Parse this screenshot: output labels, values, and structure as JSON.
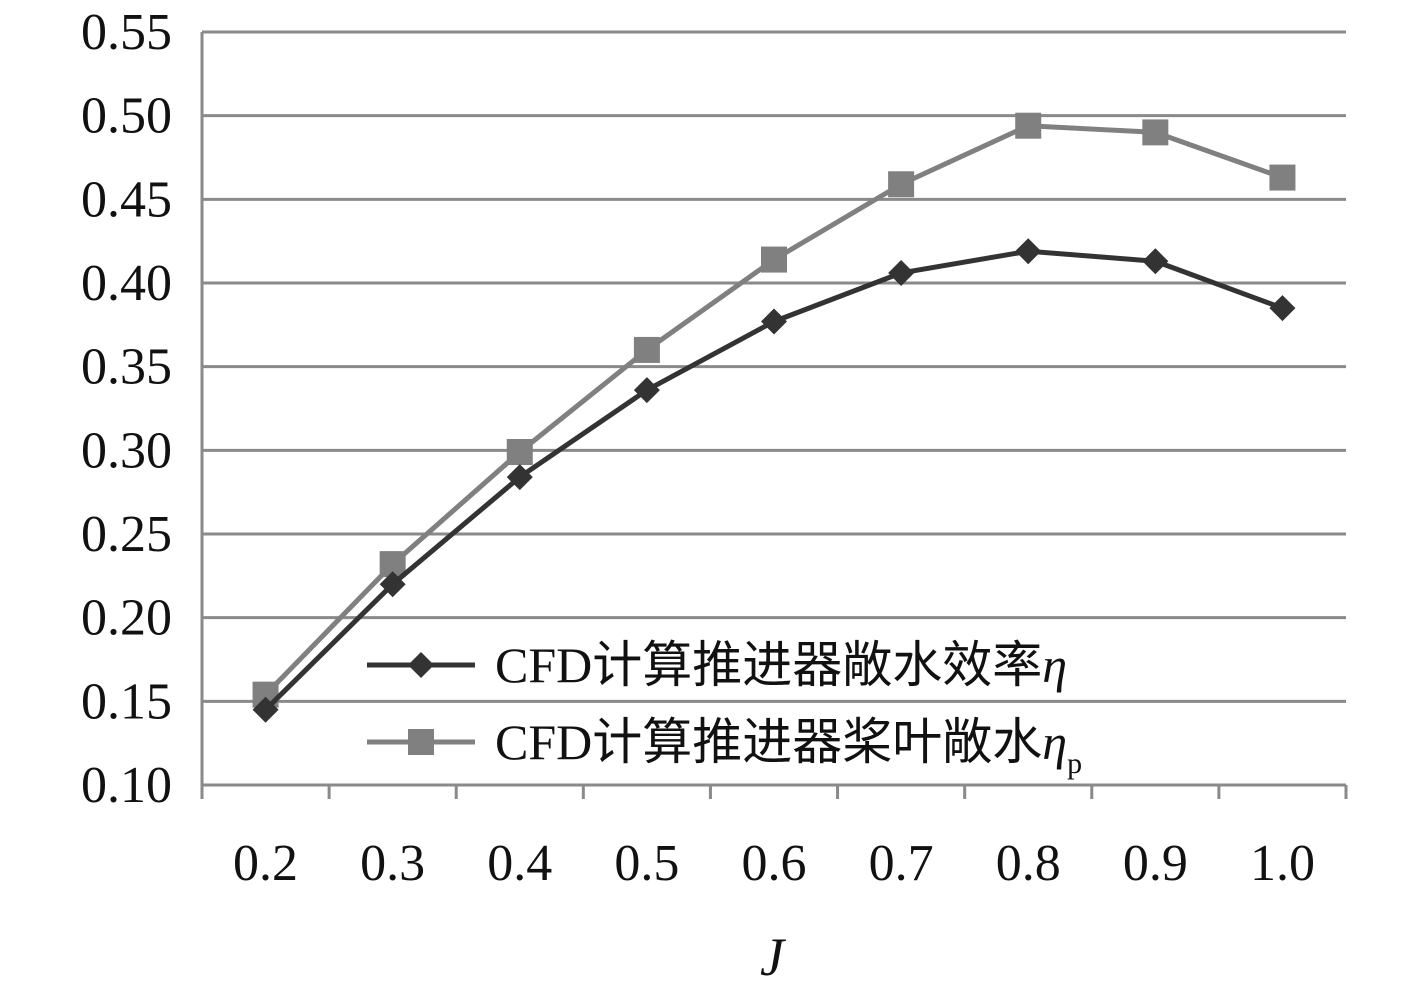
{
  "chart_data": {
    "type": "line",
    "xlabel": "J",
    "ylabel": "",
    "title": "",
    "x": [
      0.2,
      0.3,
      0.4,
      0.5,
      0.6,
      0.7,
      0.8,
      0.9,
      1.0
    ],
    "x_tick_labels": [
      "0.2",
      "0.3",
      "0.4",
      "0.5",
      "0.6",
      "0.7",
      "0.8",
      "0.9",
      "1.0"
    ],
    "ylim": [
      0.1,
      0.55
    ],
    "y_tick_labels": [
      "0.10",
      "0.15",
      "0.20",
      "0.25",
      "0.30",
      "0.35",
      "0.40",
      "0.45",
      "0.50",
      "0.55"
    ],
    "grid": "horizontal",
    "legend_position": "bottom-right",
    "series": [
      {
        "name": "CFD计算推进器敞水效率",
        "symbol": "η",
        "subscript": "",
        "marker": "diamond",
        "color": "#333333",
        "values": [
          0.145,
          0.22,
          0.284,
          0.336,
          0.377,
          0.406,
          0.419,
          0.413,
          0.385
        ]
      },
      {
        "name": "CFD计算推进器桨叶敞水",
        "symbol": "η",
        "subscript": "p",
        "marker": "square",
        "color": "#808080",
        "values": [
          0.154,
          0.232,
          0.299,
          0.36,
          0.414,
          0.459,
          0.494,
          0.49,
          0.463
        ]
      }
    ]
  }
}
